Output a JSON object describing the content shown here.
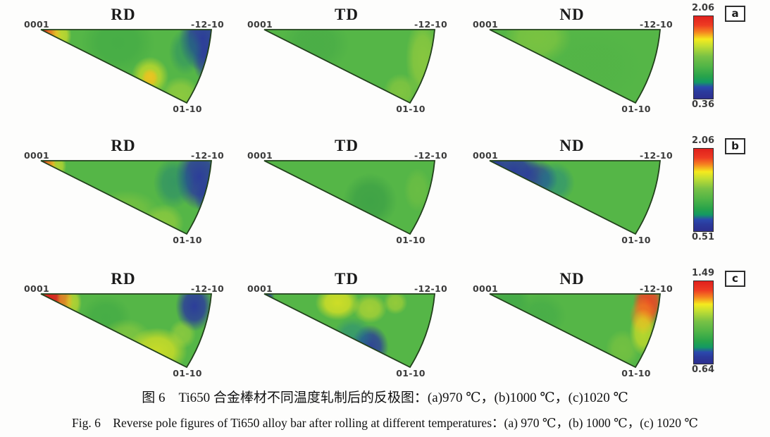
{
  "figure": {
    "pole_labels": {
      "apex": "0001",
      "top_right": "-12-10",
      "bottom": "01-10"
    },
    "base_color": "#55b647",
    "outline_color": "#22411c",
    "colorbar_stops": [
      [
        0,
        "#e0201d"
      ],
      [
        0.11,
        "#ee3c23"
      ],
      [
        0.19,
        "#f58220"
      ],
      [
        0.28,
        "#f5ea1e"
      ],
      [
        0.36,
        "#c3df32"
      ],
      [
        0.49,
        "#77c145"
      ],
      [
        0.62,
        "#4db347"
      ],
      [
        0.73,
        "#27a34b"
      ],
      [
        0.8,
        "#139a63"
      ],
      [
        0.86,
        "#2b49ad"
      ],
      [
        0.92,
        "#2b3a9c"
      ],
      [
        1,
        "#2d2f8f"
      ]
    ],
    "rows": [
      {
        "label": "a",
        "colorbar": {
          "max": "2.06",
          "min": "0.36"
        },
        "panels": [
          {
            "direction": "RD",
            "field": [
              [
                0.015,
                0.06,
                0.055,
                0.24,
                "#e0201d",
                1
              ],
              [
                0.07,
                0.07,
                0.05,
                0.17,
                "#f58220",
                0.9
              ],
              [
                0.12,
                0.08,
                0.06,
                0.2,
                "#e8e427",
                0.7
              ],
              [
                0.45,
                0.18,
                0.22,
                0.45,
                "#35a244",
                0.45
              ],
              [
                0.95,
                0.12,
                0.14,
                0.45,
                "#2b3a9c",
                0.97
              ],
              [
                0.97,
                0.42,
                0.08,
                0.3,
                "#2b3a9c",
                0.7
              ],
              [
                0.85,
                0.3,
                0.1,
                0.32,
                "#1b7f72",
                0.45
              ],
              [
                0.64,
                0.66,
                0.05,
                0.13,
                "#f58220",
                0.9
              ],
              [
                0.64,
                0.64,
                0.11,
                0.27,
                "#ece71f",
                0.65
              ],
              [
                0.82,
                0.9,
                0.12,
                0.26,
                "#b8d938",
                0.55
              ]
            ]
          },
          {
            "direction": "TD",
            "field": [
              [
                0.3,
                0.2,
                0.2,
                0.4,
                "#3ba146",
                0.4
              ],
              [
                0.93,
                0.4,
                0.1,
                0.55,
                "#a9d23a",
                0.6
              ],
              [
                0.8,
                0.85,
                0.1,
                0.25,
                "#a9d23a",
                0.5
              ]
            ]
          },
          {
            "direction": "ND",
            "field": [
              [
                0.28,
                0.12,
                0.2,
                0.35,
                "#97cd3c",
                0.55
              ],
              [
                0.6,
                0.5,
                0.3,
                0.5,
                "#4fb246",
                0.4
              ]
            ]
          }
        ]
      },
      {
        "label": "b",
        "colorbar": {
          "max": "2.06",
          "min": "0.51"
        },
        "panels": [
          {
            "direction": "RD",
            "field": [
              [
                0.012,
                0.05,
                0.04,
                0.2,
                "#e0201d",
                1
              ],
              [
                0.055,
                0.06,
                0.035,
                0.14,
                "#f58220",
                0.9
              ],
              [
                0.1,
                0.07,
                0.05,
                0.16,
                "#e8e427",
                0.6
              ],
              [
                0.93,
                0.22,
                0.14,
                0.45,
                "#2b3a9c",
                0.97
              ],
              [
                0.97,
                0.5,
                0.07,
                0.25,
                "#2b3a9c",
                0.6
              ],
              [
                0.78,
                0.3,
                0.12,
                0.35,
                "#17787c",
                0.5
              ],
              [
                0.5,
                0.7,
                0.2,
                0.3,
                "#9ecf3a",
                0.4
              ],
              [
                0.72,
                0.85,
                0.12,
                0.26,
                "#b8d938",
                0.5
              ]
            ]
          },
          {
            "direction": "TD",
            "field": [
              [
                0.62,
                0.55,
                0.16,
                0.38,
                "#2e9345",
                0.55
              ],
              [
                0.9,
                0.4,
                0.08,
                0.3,
                "#8fca3d",
                0.35
              ]
            ]
          },
          {
            "direction": "ND",
            "field": [
              [
                0.02,
                0.08,
                0.07,
                0.25,
                "#2b3a9c",
                1
              ],
              [
                0.14,
                0.15,
                0.16,
                0.3,
                "#2b3a9c",
                0.97
              ],
              [
                0.28,
                0.25,
                0.12,
                0.26,
                "#2b3a9c",
                0.8
              ],
              [
                0.38,
                0.3,
                0.12,
                0.28,
                "#1b7f8c",
                0.5
              ]
            ]
          }
        ]
      },
      {
        "label": "c",
        "colorbar": {
          "max": "1.49",
          "min": "0.64"
        },
        "panels": [
          {
            "direction": "RD",
            "field": [
              [
                0.05,
                0.08,
                0.09,
                0.32,
                "#e0201d",
                1
              ],
              [
                0.14,
                0.09,
                0.05,
                0.22,
                "#f58220",
                0.85
              ],
              [
                0.19,
                0.12,
                0.05,
                0.2,
                "#e8e427",
                0.6
              ],
              [
                0.9,
                0.17,
                0.11,
                0.34,
                "#2b3a9c",
                0.97
              ],
              [
                0.38,
                0.32,
                0.15,
                0.3,
                "#35a244",
                0.45
              ],
              [
                0.68,
                0.78,
                0.18,
                0.32,
                "#ece71f",
                0.75
              ],
              [
                0.5,
                0.6,
                0.15,
                0.26,
                "#b8d938",
                0.4
              ],
              [
                0.83,
                0.55,
                0.08,
                0.2,
                "#b8d938",
                0.5
              ]
            ]
          },
          {
            "direction": "TD",
            "field": [
              [
                0.01,
                0.06,
                0.05,
                0.2,
                "#2b3a9c",
                0.9
              ],
              [
                0.43,
                0.12,
                0.13,
                0.24,
                "#ece71f",
                0.8
              ],
              [
                0.62,
                0.2,
                0.1,
                0.2,
                "#dfe32a",
                0.55
              ],
              [
                0.77,
                0.12,
                0.07,
                0.16,
                "#dfe32a",
                0.45
              ],
              [
                0.62,
                0.72,
                0.11,
                0.3,
                "#2b3a9c",
                0.92
              ],
              [
                0.52,
                0.58,
                0.12,
                0.26,
                "#1b7f8c",
                0.5
              ]
            ]
          },
          {
            "direction": "ND",
            "field": [
              [
                0.12,
                0.1,
                0.12,
                0.26,
                "#35a048",
                0.5
              ],
              [
                0.3,
                0.3,
                0.15,
                0.3,
                "#3aa448",
                0.45
              ],
              [
                0.93,
                0.12,
                0.09,
                0.3,
                "#ef4323",
                0.95
              ],
              [
                0.9,
                0.3,
                0.08,
                0.26,
                "#f58220",
                0.7
              ],
              [
                0.9,
                0.52,
                0.08,
                0.32,
                "#ece71f",
                0.65
              ],
              [
                0.78,
                0.75,
                0.1,
                0.26,
                "#9ecf3a",
                0.4
              ]
            ]
          }
        ]
      }
    ],
    "caption_zh": "图 6　Ti650 合金棒材不同温度轧制后的反极图：(a)970 ℃，(b)1000 ℃，(c)1020 ℃",
    "caption_en": "Fig. 6　Reverse pole figures of Ti650 alloy bar after rolling at different temperatures：(a) 970 ℃，(b) 1000 ℃，(c) 1020 ℃"
  },
  "chart_data": {
    "type": "heatmap",
    "subtype": "inverse-pole-figure (hexagonal wedge, corners 0001 / -12-10 / 01-10)",
    "colormap": "rainbow, red = max intensity, blue = min intensity",
    "legend_position": "right of each row",
    "rows": [
      {
        "subfigure": "a",
        "temperature": "970 ℃",
        "intensity_max": 2.06,
        "intensity_min": 0.36,
        "panels": [
          {
            "direction": "RD",
            "hotspots": "red maximum at 0001 apex; secondary orange peak on lower arc near 01-10; blue minimum at -12-10 corner"
          },
          {
            "direction": "TD",
            "hotspots": "near-uniform green; slight yellow-green along outer arc"
          },
          {
            "direction": "ND",
            "hotspots": "near-uniform green; faint yellow-green near apex region"
          }
        ]
      },
      {
        "subfigure": "b",
        "temperature": "1000 ℃",
        "intensity_max": 2.06,
        "intensity_min": 0.51,
        "panels": [
          {
            "direction": "RD",
            "hotspots": "red maximum at 0001 apex; broad blue minimum along -12-10 side"
          },
          {
            "direction": "TD",
            "hotspots": "green with darker green patch at center-bottom"
          },
          {
            "direction": "ND",
            "hotspots": "blue minimum filling apex (0001) region, rest green"
          }
        ]
      },
      {
        "subfigure": "c",
        "temperature": "1020 ℃",
        "intensity_max": 1.49,
        "intensity_min": 0.64,
        "panels": [
          {
            "direction": "RD",
            "hotspots": "red band at 0001 apex; blue spot at -12-10 corner; yellow band along lower arc"
          },
          {
            "direction": "TD",
            "hotspots": "yellow patches along top edge; blue patch near 01-10 arc; blue sliver at apex"
          },
          {
            "direction": "ND",
            "hotspots": "orange-red maximum at -12-10 corner with yellow along arc; darker green near apex"
          }
        ]
      }
    ]
  }
}
